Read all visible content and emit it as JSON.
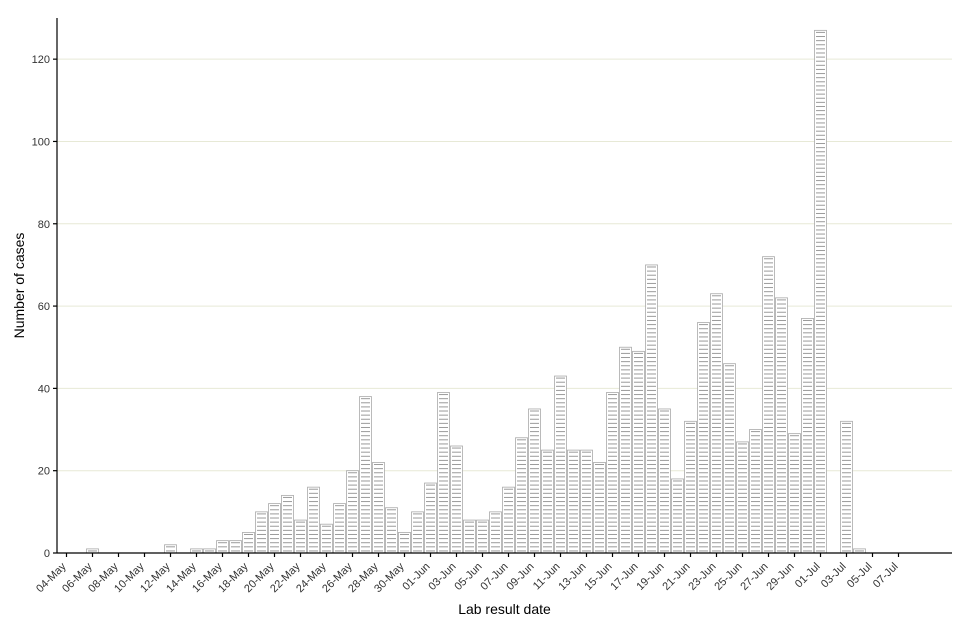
{
  "chart_data": {
    "type": "bar",
    "xlabel": "Lab result date",
    "ylabel": "Number of cases",
    "ylim": [
      0,
      130
    ],
    "yticks": [
      0,
      20,
      40,
      60,
      80,
      100,
      120
    ],
    "grid": "horizontal major",
    "categories": [
      "04-May",
      "05-May",
      "06-May",
      "07-May",
      "08-May",
      "09-May",
      "10-May",
      "11-May",
      "12-May",
      "13-May",
      "14-May",
      "15-May",
      "16-May",
      "17-May",
      "18-May",
      "19-May",
      "20-May",
      "21-May",
      "22-May",
      "23-May",
      "24-May",
      "25-May",
      "26-May",
      "27-May",
      "28-May",
      "29-May",
      "30-May",
      "31-May",
      "01-Jun",
      "02-Jun",
      "03-Jun",
      "04-Jun",
      "05-Jun",
      "06-Jun",
      "07-Jun",
      "08-Jun",
      "09-Jun",
      "10-Jun",
      "11-Jun",
      "12-Jun",
      "13-Jun",
      "14-Jun",
      "15-Jun",
      "16-Jun",
      "17-Jun",
      "18-Jun",
      "19-Jun",
      "20-Jun",
      "21-Jun",
      "22-Jun",
      "23-Jun",
      "24-Jun",
      "25-Jun",
      "26-Jun",
      "27-Jun",
      "28-Jun",
      "29-Jun",
      "30-Jun",
      "01-Jul",
      "02-Jul",
      "03-Jul",
      "04-Jul",
      "05-Jul",
      "06-Jul",
      "07-Jul"
    ],
    "tick_labels": [
      "04-May",
      "06-May",
      "08-May",
      "10-May",
      "12-May",
      "14-May",
      "16-May",
      "18-May",
      "20-May",
      "22-May",
      "24-May",
      "26-May",
      "28-May",
      "30-May",
      "01-Jun",
      "03-Jun",
      "05-Jun",
      "07-Jun",
      "09-Jun",
      "11-Jun",
      "13-Jun",
      "15-Jun",
      "17-Jun",
      "19-Jun",
      "21-Jun",
      "23-Jun",
      "25-Jun",
      "27-Jun",
      "29-Jun",
      "01-Jul",
      "03-Jul",
      "05-Jul",
      "07-Jul"
    ],
    "values": [
      0,
      0,
      1,
      0,
      0,
      0,
      0,
      0,
      2,
      0,
      1,
      1,
      3,
      3,
      5,
      10,
      12,
      14,
      8,
      16,
      7,
      12,
      20,
      38,
      22,
      11,
      5,
      10,
      17,
      39,
      26,
      8,
      8,
      10,
      16,
      28,
      35,
      25,
      43,
      25,
      25,
      22,
      39,
      50,
      49,
      70,
      35,
      18,
      32,
      56,
      63,
      46,
      27,
      30,
      72,
      62,
      29,
      57,
      127,
      0,
      32,
      1,
      0,
      0,
      0
    ],
    "colors": {
      "bar_fill": "#ffffff",
      "bar_edge": "#a9a9a9",
      "case_line": "#9a9a9a",
      "grid": "#e7e9d6",
      "axis": "#000000"
    }
  }
}
